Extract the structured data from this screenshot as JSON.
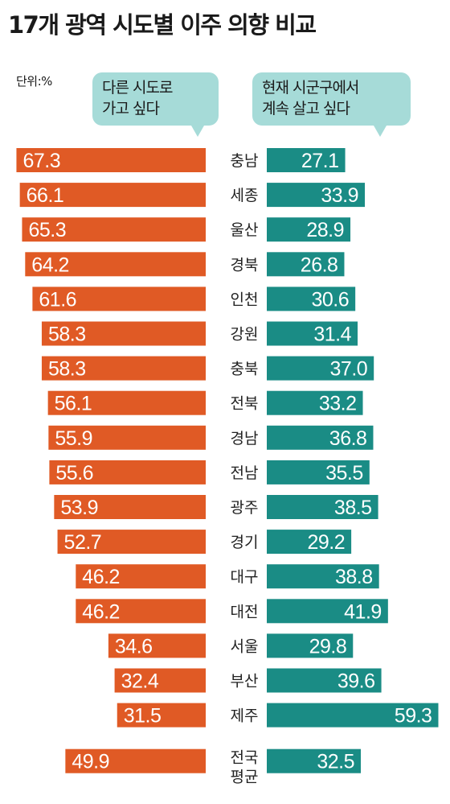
{
  "title": "17개 광역 시도별 이주 의향 비교",
  "unit": "단위:%",
  "legend": {
    "left": "다른 시도로\n가고 싶다",
    "right": "현재 시군구에서\n계속 살고 싶다"
  },
  "colors": {
    "left": "#e05a25",
    "right": "#1a8c85",
    "bubble": "#a6dbd8"
  },
  "chart_data": {
    "type": "bar",
    "layout": "butterfly",
    "categories": [
      "충남",
      "세종",
      "울산",
      "경북",
      "인천",
      "강원",
      "충북",
      "전북",
      "경남",
      "전남",
      "광주",
      "경기",
      "대구",
      "대전",
      "서울",
      "부산",
      "제주",
      "전국\n평균"
    ],
    "series": [
      {
        "name": "다른 시도로 가고 싶다",
        "values": [
          67.3,
          66.1,
          65.3,
          64.2,
          61.6,
          58.3,
          58.3,
          56.1,
          55.9,
          55.6,
          53.9,
          52.7,
          46.2,
          46.2,
          34.6,
          32.4,
          31.5,
          49.9
        ]
      },
      {
        "name": "현재 시군구에서 계속 살고 싶다",
        "values": [
          27.1,
          33.9,
          28.9,
          26.8,
          30.6,
          31.4,
          37.0,
          33.2,
          36.8,
          35.5,
          38.5,
          29.2,
          38.8,
          41.9,
          29.8,
          39.6,
          59.3,
          32.5
        ]
      }
    ]
  }
}
